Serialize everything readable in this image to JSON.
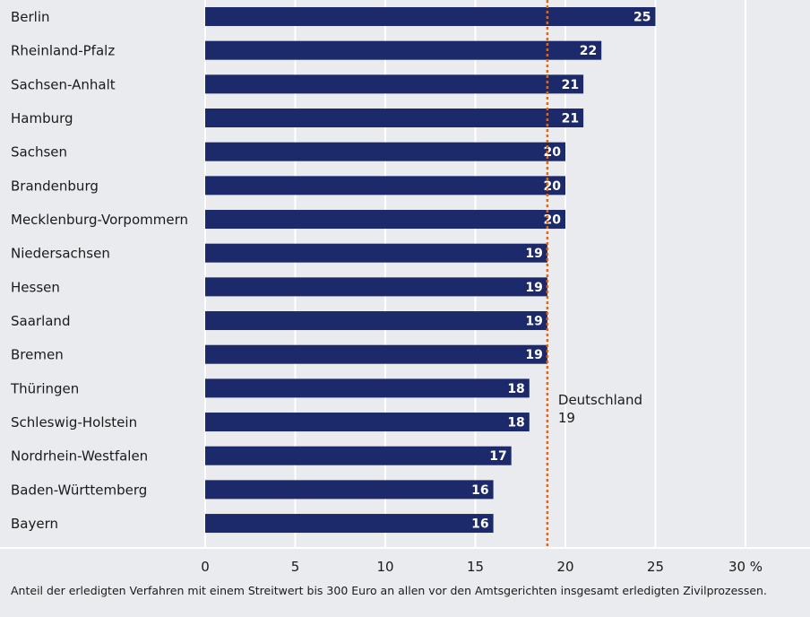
{
  "chart_data": {
    "type": "bar",
    "orientation": "horizontal",
    "categories": [
      "Berlin",
      "Rheinland-Pfalz",
      "Sachsen-Anhalt",
      "Hamburg",
      "Sachsen",
      "Brandenburg",
      "Mecklenburg-Vorpommern",
      "Niedersachsen",
      "Hessen",
      "Saarland",
      "Bremen",
      "Thüringen",
      "Schleswig-Holstein",
      "Nordrhein-Westfalen",
      "Baden-Württemberg",
      "Bayern"
    ],
    "values": [
      25,
      22,
      21,
      21,
      20,
      20,
      20,
      19,
      19,
      19,
      19,
      18,
      18,
      17,
      16,
      16
    ],
    "xlim": [
      0,
      30
    ],
    "xticks": [
      0,
      5,
      10,
      15,
      20,
      25,
      30
    ],
    "xtick_labels": [
      "0",
      "5",
      "10",
      "15",
      "20",
      "25",
      "30 %"
    ],
    "grid": true,
    "bar_color": "#1c2a6b",
    "reference_line": {
      "value": 19,
      "label_line1": "Deutschland",
      "label_line2": "19",
      "color": "#d9691c"
    }
  },
  "footnote": "Anteil der erledigten Verfahren mit einem Streitwert bis 300 Euro an allen vor den Amtsgerichten insgesamt erledigten Zivilprozessen."
}
